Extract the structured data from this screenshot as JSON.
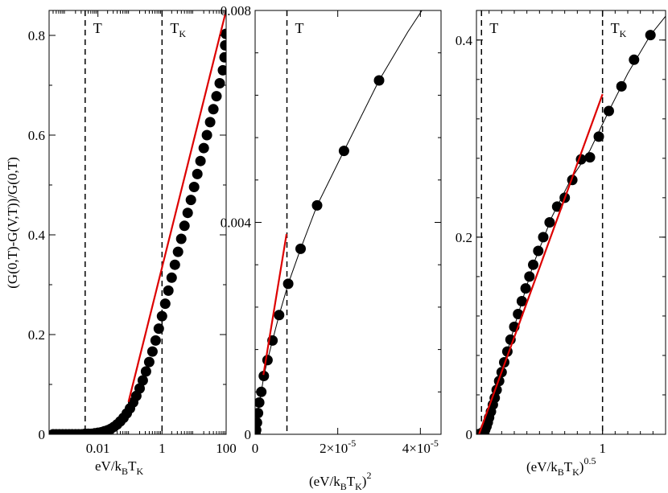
{
  "chart_data": [
    {
      "type": "scatter",
      "panel": "left",
      "xscale": "log",
      "xlabel": {
        "main": "eV/k",
        "sub1": "B",
        "mid": "T",
        "sub2": "K"
      },
      "ylabel": "(G(0,T)-G(V,T))/G(0,T)",
      "xlim": [
        0.0003,
        100
      ],
      "ylim": [
        0,
        0.85
      ],
      "xticks": [
        {
          "value": 0.01,
          "label": "0.01"
        },
        {
          "value": 1,
          "label": "1"
        },
        {
          "value": 100,
          "label": "100"
        }
      ],
      "yticks": [
        {
          "value": 0,
          "label": "0"
        },
        {
          "value": 0.2,
          "label": "0.2"
        },
        {
          "value": 0.4,
          "label": "0.4"
        },
        {
          "value": 0.6,
          "label": "0.6"
        },
        {
          "value": 0.8,
          "label": "0.8"
        }
      ],
      "vlines": [
        {
          "x": 0.004,
          "label": "T",
          "sub": ""
        },
        {
          "x": 1,
          "label": "T",
          "sub": "K"
        }
      ],
      "points": [
        [
          0.0004,
          0.0
        ],
        [
          0.0005,
          0.0
        ],
        [
          0.00063,
          0.0
        ],
        [
          0.00079,
          0.0
        ],
        [
          0.001,
          0.0
        ],
        [
          0.00126,
          0.0
        ],
        [
          0.00158,
          0.0
        ],
        [
          0.002,
          0.0
        ],
        [
          0.00251,
          0.0
        ],
        [
          0.00316,
          0.0
        ],
        [
          0.00398,
          0.001
        ],
        [
          0.00501,
          0.001
        ],
        [
          0.00631,
          0.001
        ],
        [
          0.00794,
          0.002
        ],
        [
          0.01,
          0.003
        ],
        [
          0.0126,
          0.004
        ],
        [
          0.0158,
          0.006
        ],
        [
          0.02,
          0.008
        ],
        [
          0.0251,
          0.011
        ],
        [
          0.0316,
          0.015
        ],
        [
          0.0398,
          0.02
        ],
        [
          0.0501,
          0.026
        ],
        [
          0.0631,
          0.033
        ],
        [
          0.0794,
          0.042
        ],
        [
          0.1,
          0.052
        ],
        [
          0.126,
          0.064
        ],
        [
          0.158,
          0.077
        ],
        [
          0.2,
          0.092
        ],
        [
          0.251,
          0.108
        ],
        [
          0.316,
          0.126
        ],
        [
          0.398,
          0.145
        ],
        [
          0.501,
          0.166
        ],
        [
          0.631,
          0.188
        ],
        [
          0.794,
          0.212
        ],
        [
          1.0,
          0.237
        ],
        [
          1.26,
          0.262
        ],
        [
          1.58,
          0.288
        ],
        [
          2.0,
          0.314
        ],
        [
          2.51,
          0.34
        ],
        [
          3.16,
          0.366
        ],
        [
          3.98,
          0.392
        ],
        [
          5.01,
          0.418
        ],
        [
          6.31,
          0.444
        ],
        [
          7.94,
          0.47
        ],
        [
          10.0,
          0.496
        ],
        [
          12.6,
          0.522
        ],
        [
          15.8,
          0.548
        ],
        [
          20.0,
          0.574
        ],
        [
          25.1,
          0.6
        ],
        [
          31.6,
          0.626
        ],
        [
          39.8,
          0.652
        ],
        [
          50.1,
          0.678
        ],
        [
          63.1,
          0.704
        ],
        [
          79.4,
          0.73
        ],
        [
          89.1,
          0.756
        ],
        [
          93.3,
          0.78
        ],
        [
          97.7,
          0.803
        ]
      ],
      "fit_line": {
        "color": "#dd0000",
        "x": [
          0.09,
          100
        ],
        "y": [
          0.065,
          0.85
        ]
      }
    },
    {
      "type": "line",
      "panel": "middle",
      "xlabel": {
        "main": "(eV/k",
        "sub1": "B",
        "mid": "T",
        "sub2": "K",
        "close": ")",
        "sup": "2"
      },
      "xlim": [
        0,
        4.5e-05
      ],
      "ylim": [
        0,
        0.008
      ],
      "xticks": [
        {
          "value": 0,
          "label": "0"
        },
        {
          "value": 2e-05,
          "label": "2×10",
          "exp": "-5"
        },
        {
          "value": 4e-05,
          "label": "4×10",
          "exp": "-5"
        }
      ],
      "yticks": [
        {
          "value": 0,
          "label": "0"
        },
        {
          "value": 0.004,
          "label": "0.004"
        },
        {
          "value": 0.008,
          "label": "0.008"
        }
      ],
      "vlines": [
        {
          "x": 7.7e-06,
          "label": "T",
          "sub": ""
        }
      ],
      "points": [
        [
          1e-07,
          3e-05
        ],
        [
          2.5e-07,
          8e-05
        ],
        [
          4.5e-07,
          0.00022
        ],
        [
          7e-07,
          0.0004
        ],
        [
          1e-06,
          0.0006
        ],
        [
          1.5e-06,
          0.0008
        ],
        [
          2.1e-06,
          0.0011
        ],
        [
          3e-06,
          0.0014
        ],
        [
          4.2e-06,
          0.00177
        ],
        [
          5.8e-06,
          0.00225
        ],
        [
          8e-06,
          0.00284
        ],
        [
          1.1e-05,
          0.0035
        ],
        [
          1.5e-05,
          0.00432
        ],
        [
          2.15e-05,
          0.00535
        ],
        [
          3e-05,
          0.00668
        ]
      ],
      "curve": [
        [
          0,
          0
        ],
        [
          1e-07,
          3e-05
        ],
        [
          2.5e-07,
          8e-05
        ],
        [
          4.5e-07,
          0.00022
        ],
        [
          7e-07,
          0.0004
        ],
        [
          1e-06,
          0.0006
        ],
        [
          1.5e-06,
          0.0008
        ],
        [
          2.1e-06,
          0.0011
        ],
        [
          3e-06,
          0.0014
        ],
        [
          4.2e-06,
          0.00177
        ],
        [
          5.8e-06,
          0.00225
        ],
        [
          8e-06,
          0.00284
        ],
        [
          1.1e-05,
          0.0035
        ],
        [
          1.5e-05,
          0.00432
        ],
        [
          2.15e-05,
          0.00535
        ],
        [
          3e-05,
          0.00668
        ],
        [
          3.7e-05,
          0.0076
        ],
        [
          4.5e-05,
          0.00855
        ]
      ],
      "fit_line": {
        "color": "#dd0000",
        "x": [
          2e-06,
          7.6e-06
        ],
        "y": [
          0.00112,
          0.00378
        ]
      }
    },
    {
      "type": "scatter",
      "panel": "right",
      "xlabel": {
        "main": "(eV/k",
        "sub1": "B",
        "mid": "T",
        "sub2": "K",
        "close": ")",
        "sup": "0.5"
      },
      "xlim": [
        0,
        1.5
      ],
      "ylim": [
        0,
        0.43
      ],
      "xticks": [
        {
          "value": 1,
          "label": "1"
        }
      ],
      "yticks": [
        {
          "value": 0,
          "label": "0"
        },
        {
          "value": 0.2,
          "label": "0.2"
        },
        {
          "value": 0.4,
          "label": "0.4"
        }
      ],
      "vlines": [
        {
          "x": 0.04,
          "label": "T",
          "sub": ""
        },
        {
          "x": 1,
          "label": "T",
          "sub": "K"
        }
      ],
      "points": [
        [
          0.012,
          0.0
        ],
        [
          0.02,
          0.0
        ],
        [
          0.03,
          0.0005
        ],
        [
          0.04,
          0.001
        ],
        [
          0.05,
          0.002
        ],
        [
          0.06,
          0.003
        ],
        [
          0.07,
          0.005
        ],
        [
          0.08,
          0.008
        ],
        [
          0.09,
          0.012
        ],
        [
          0.1,
          0.017
        ],
        [
          0.115,
          0.023
        ],
        [
          0.13,
          0.03
        ],
        [
          0.145,
          0.037
        ],
        [
          0.16,
          0.045
        ],
        [
          0.18,
          0.054
        ],
        [
          0.2,
          0.063
        ],
        [
          0.22,
          0.073
        ],
        [
          0.245,
          0.084
        ],
        [
          0.27,
          0.096
        ],
        [
          0.3,
          0.109
        ],
        [
          0.33,
          0.122
        ],
        [
          0.36,
          0.135
        ],
        [
          0.39,
          0.148
        ],
        [
          0.42,
          0.16
        ],
        [
          0.45,
          0.172
        ],
        [
          0.49,
          0.186
        ],
        [
          0.53,
          0.2
        ],
        [
          0.58,
          0.215
        ],
        [
          0.64,
          0.231
        ],
        [
          0.7,
          0.24
        ],
        [
          0.76,
          0.258
        ],
        [
          0.83,
          0.279
        ],
        [
          0.9,
          0.281
        ],
        [
          0.97,
          0.302
        ],
        [
          1.05,
          0.328
        ],
        [
          1.15,
          0.353
        ],
        [
          1.25,
          0.38
        ],
        [
          1.38,
          0.405
        ]
      ],
      "curve": [
        [
          0,
          0
        ],
        [
          0.06,
          0.003
        ],
        [
          0.1,
          0.017
        ],
        [
          0.2,
          0.063
        ],
        [
          0.3,
          0.109
        ],
        [
          0.45,
          0.172
        ],
        [
          0.6,
          0.221
        ],
        [
          0.75,
          0.259
        ],
        [
          0.9,
          0.288
        ],
        [
          1.05,
          0.328
        ],
        [
          1.2,
          0.366
        ],
        [
          1.38,
          0.405
        ],
        [
          1.55,
          0.432
        ]
      ],
      "fit_line": {
        "color": "#dd0000",
        "x": [
          0.02,
          1.0
        ],
        "y": [
          0.0,
          0.345
        ]
      }
    }
  ]
}
